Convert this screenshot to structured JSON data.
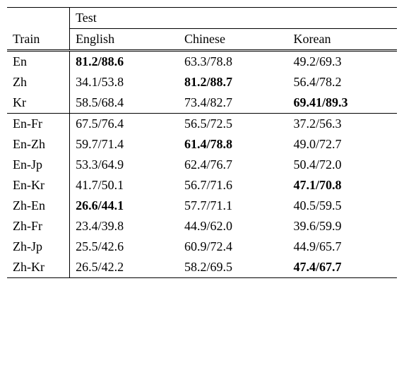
{
  "header": {
    "train": "Train",
    "test": "Test",
    "cols": [
      "English",
      "Chinese",
      "Korean"
    ]
  },
  "groups": [
    {
      "rows": [
        {
          "label": "En",
          "cells": [
            {
              "v": "81.2/88.6",
              "b": true
            },
            {
              "v": "63.3/78.8",
              "b": false
            },
            {
              "v": "49.2/69.3",
              "b": false
            }
          ]
        },
        {
          "label": "Zh",
          "cells": [
            {
              "v": "34.1/53.8",
              "b": false
            },
            {
              "v": "81.2/88.7",
              "b": true
            },
            {
              "v": "56.4/78.2",
              "b": false
            }
          ]
        },
        {
          "label": "Kr",
          "cells": [
            {
              "v": "58.5/68.4",
              "b": false
            },
            {
              "v": "73.4/82.7",
              "b": false
            },
            {
              "v": "69.41/89.3",
              "b": true
            }
          ]
        }
      ]
    },
    {
      "rows": [
        {
          "label": "En-Fr",
          "cells": [
            {
              "v": "67.5/76.4",
              "b": false
            },
            {
              "v": "56.5/72.5",
              "b": false
            },
            {
              "v": "37.2/56.3",
              "b": false
            }
          ]
        },
        {
          "label": "En-Zh",
          "cells": [
            {
              "v": "59.7/71.4",
              "b": false
            },
            {
              "v": "61.4/78.8",
              "b": true
            },
            {
              "v": "49.0/72.7",
              "b": false
            }
          ]
        },
        {
          "label": "En-Jp",
          "cells": [
            {
              "v": "53.3/64.9",
              "b": false
            },
            {
              "v": "62.4/76.7",
              "b": false
            },
            {
              "v": "50.4/72.0",
              "b": false
            }
          ]
        },
        {
          "label": "En-Kr",
          "cells": [
            {
              "v": "41.7/50.1",
              "b": false
            },
            {
              "v": "56.7/71.6",
              "b": false
            },
            {
              "v": "47.1/70.8",
              "b": true
            }
          ]
        },
        {
          "label": "Zh-En",
          "cells": [
            {
              "v": "26.6/44.1",
              "b": true
            },
            {
              "v": "57.7/71.1",
              "b": false
            },
            {
              "v": "40.5/59.5",
              "b": false
            }
          ]
        },
        {
          "label": "Zh-Fr",
          "cells": [
            {
              "v": "23.4/39.8",
              "b": false
            },
            {
              "v": "44.9/62.0",
              "b": false
            },
            {
              "v": "39.6/59.9",
              "b": false
            }
          ]
        },
        {
          "label": "Zh-Jp",
          "cells": [
            {
              "v": "25.5/42.6",
              "b": false
            },
            {
              "v": "60.9/72.4",
              "b": false
            },
            {
              "v": "44.9/65.7",
              "b": false
            }
          ]
        },
        {
          "label": "Zh-Kr",
          "cells": [
            {
              "v": "26.5/42.2",
              "b": false
            },
            {
              "v": "58.2/69.5",
              "b": false
            },
            {
              "v": "47.4/67.7",
              "b": true
            }
          ]
        }
      ]
    }
  ]
}
